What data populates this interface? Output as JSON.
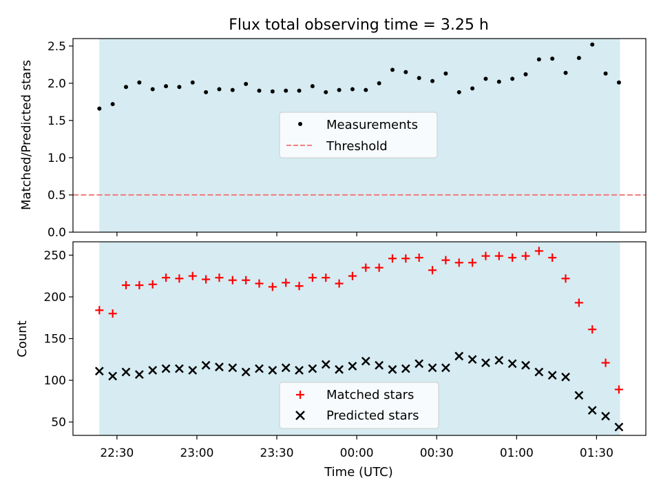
{
  "chart_data": {
    "title": "Flux total observing time = 3.25 h",
    "xlabel": "Time (UTC)",
    "x_tick_labels": [
      "22:30",
      "23:00",
      "23:30",
      "00:00",
      "00:30",
      "01:00",
      "01:30"
    ],
    "x_tick_minutes": [
      0,
      30,
      60,
      90,
      120,
      150,
      180
    ],
    "xlim_minutes": [
      -16.5,
      198.5
    ],
    "observing_span_minutes": [
      -6.6,
      188.8
    ],
    "colors": {
      "span": "#add8e6",
      "measurements": "#000000",
      "threshold": "#f08080",
      "matched": "#ff0000",
      "predicted": "#000000"
    },
    "panels": [
      {
        "type": "scatter",
        "ylabel": "Matched/Predicted stars",
        "ylim": [
          0,
          2.6
        ],
        "y_ticks": [
          "0.0",
          "0.5",
          "1.0",
          "1.5",
          "2.0",
          "2.5"
        ],
        "legend_position": "center",
        "series": [
          {
            "name": "Measurements",
            "marker": "dot",
            "x_minutes": [
              -6.6,
              -1.6,
              3.4,
              8.4,
              13.4,
              18.4,
              23.4,
              28.4,
              33.4,
              38.4,
              43.4,
              48.4,
              53.4,
              58.4,
              63.4,
              68.4,
              73.4,
              78.4,
              83.4,
              88.4,
              93.4,
              98.4,
              103.4,
              108.4,
              113.4,
              118.4,
              123.4,
              128.4,
              133.4,
              138.4,
              143.4,
              148.4,
              153.4,
              158.4,
              163.4,
              168.4,
              173.4,
              178.4,
              183.4,
              188.4
            ],
            "values": [
              1.66,
              1.72,
              1.95,
              2.01,
              1.92,
              1.96,
              1.95,
              2.01,
              1.88,
              1.92,
              1.91,
              1.99,
              1.9,
              1.89,
              1.9,
              1.9,
              1.96,
              1.88,
              1.91,
              1.92,
              1.91,
              2.0,
              2.18,
              2.15,
              2.07,
              2.03,
              2.13,
              1.88,
              1.93,
              2.06,
              2.02,
              2.06,
              2.12,
              2.32,
              2.33,
              2.14,
              2.34,
              2.52,
              2.13,
              2.01
            ]
          },
          {
            "name": "Threshold",
            "type": "line",
            "style": "dashed",
            "value": 0.5
          }
        ]
      },
      {
        "type": "scatter",
        "ylabel": "Count",
        "ylim": [
          34,
          266
        ],
        "y_ticks": [
          "50",
          "100",
          "150",
          "200",
          "250"
        ],
        "legend_position": "lower center",
        "series": [
          {
            "name": "Matched stars",
            "marker": "+",
            "x_minutes": [
              -6.6,
              -1.6,
              3.4,
              8.4,
              13.4,
              18.4,
              23.4,
              28.4,
              33.4,
              38.4,
              43.4,
              48.4,
              53.4,
              58.4,
              63.4,
              68.4,
              73.4,
              78.4,
              83.4,
              88.4,
              93.4,
              98.4,
              103.4,
              108.4,
              113.4,
              118.4,
              123.4,
              128.4,
              133.4,
              138.4,
              143.4,
              148.4,
              153.4,
              158.4,
              163.4,
              168.4,
              173.4,
              178.4,
              183.4,
              188.4
            ],
            "values": [
              184,
              180,
              214,
              214,
              215,
              223,
              222,
              225,
              221,
              223,
              220,
              220,
              216,
              212,
              217,
              213,
              223,
              223,
              216,
              225,
              235,
              235,
              246,
              246,
              247,
              232,
              244,
              241,
              241,
              249,
              249,
              247,
              249,
              255,
              247,
              222,
              193,
              161,
              121,
              89
            ]
          },
          {
            "name": "Predicted stars",
            "marker": "x",
            "x_minutes": [
              -6.6,
              -1.6,
              3.4,
              8.4,
              13.4,
              18.4,
              23.4,
              28.4,
              33.4,
              38.4,
              43.4,
              48.4,
              53.4,
              58.4,
              63.4,
              68.4,
              73.4,
              78.4,
              83.4,
              88.4,
              93.4,
              98.4,
              103.4,
              108.4,
              113.4,
              118.4,
              123.4,
              128.4,
              133.4,
              138.4,
              143.4,
              148.4,
              153.4,
              158.4,
              163.4,
              168.4,
              173.4,
              178.4,
              183.4,
              188.4
            ],
            "values": [
              111,
              105,
              110,
              107,
              112,
              114,
              114,
              112,
              118,
              116,
              115,
              110,
              114,
              112,
              115,
              112,
              114,
              119,
              113,
              117,
              123,
              118,
              113,
              114,
              120,
              115,
              115,
              129,
              125,
              121,
              124,
              120,
              118,
              110,
              106,
              104,
              82,
              64,
              57,
              44
            ]
          }
        ]
      }
    ]
  }
}
